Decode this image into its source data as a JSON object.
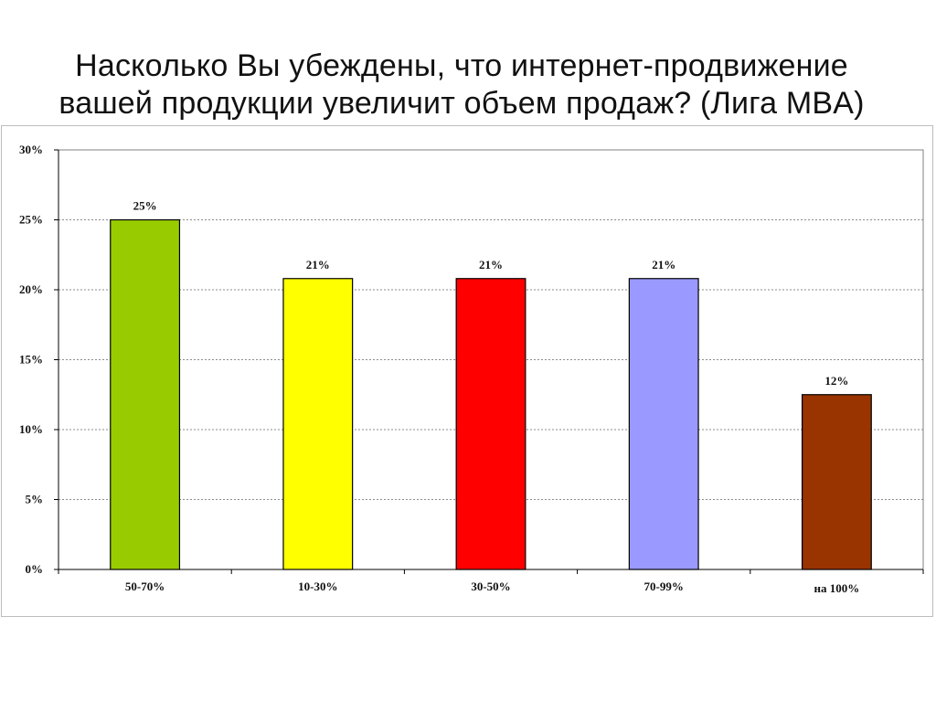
{
  "title": {
    "line1": "Насколько Вы убеждены, что интернет-продвижение",
    "line2": "вашей продукции увеличит объем продаж? (Лига MBA)"
  },
  "chart_data": {
    "type": "bar",
    "categories": [
      "50-70%",
      "10-30%",
      "30-50%",
      "70-99%",
      "на 100%"
    ],
    "values": [
      25,
      20.8,
      20.8,
      20.8,
      12.5
    ],
    "data_labels": [
      "25%",
      "21%",
      "21%",
      "21%",
      "12%"
    ],
    "colors": [
      "#99cc00",
      "#ffff00",
      "#ff0000",
      "#9999ff",
      "#993300"
    ],
    "ylim": [
      0,
      30
    ],
    "yticks": [
      0,
      5,
      10,
      15,
      20,
      25,
      30
    ],
    "ytick_labels": [
      "0%",
      "5%",
      "10%",
      "15%",
      "20%",
      "25%",
      "30%"
    ],
    "grid": true,
    "grid_style": "dashed",
    "legend": "none",
    "title": "Насколько Вы убеждены, что интернет-продвижение вашей продукции увеличит объем продаж? (Лига MBA)",
    "xlabel": "",
    "ylabel": ""
  }
}
